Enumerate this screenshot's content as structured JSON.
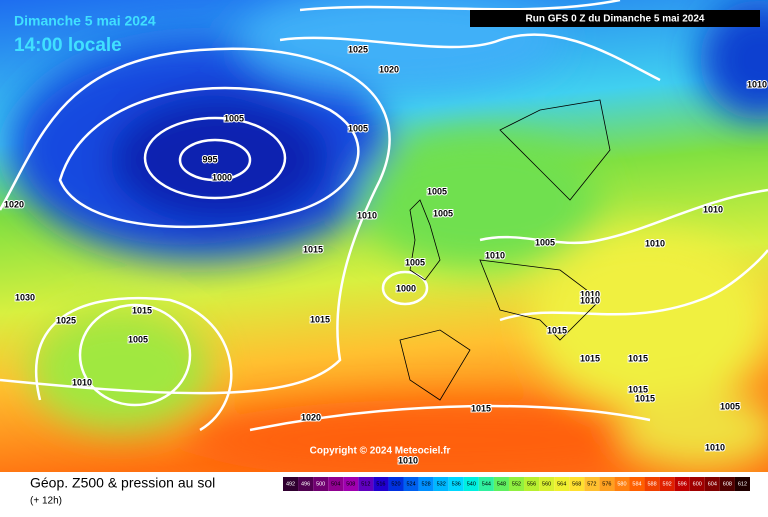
{
  "header": {
    "date": "Dimanche 5 mai 2024",
    "time": "14:00 locale",
    "run": "Run GFS 0 Z du Dimanche 5 mai 2024"
  },
  "isobar_labels": [
    1025,
    1020,
    1005,
    995,
    1000,
    1005,
    1020,
    1005,
    1005,
    1010,
    1015,
    1005,
    1010,
    1005,
    1000,
    1030,
    1025,
    1015,
    1015,
    1005,
    1010,
    1020,
    1015,
    1010,
    1010,
    1010,
    1010,
    1010,
    1015,
    1015,
    1015,
    1015,
    1015,
    1005,
    1010,
    1010
  ],
  "copyright": "Copyright © 2024 Meteociel.fr",
  "legend": {
    "title": "Géop. Z500 & pression au sol",
    "subtitle": "(+ 12h)",
    "values": [
      492,
      496,
      500,
      504,
      508,
      512,
      516,
      520,
      524,
      528,
      532,
      536,
      540,
      544,
      548,
      552,
      556,
      560,
      564,
      568,
      572,
      576,
      580,
      584,
      588,
      592,
      596,
      600,
      604,
      608,
      612
    ]
  }
}
